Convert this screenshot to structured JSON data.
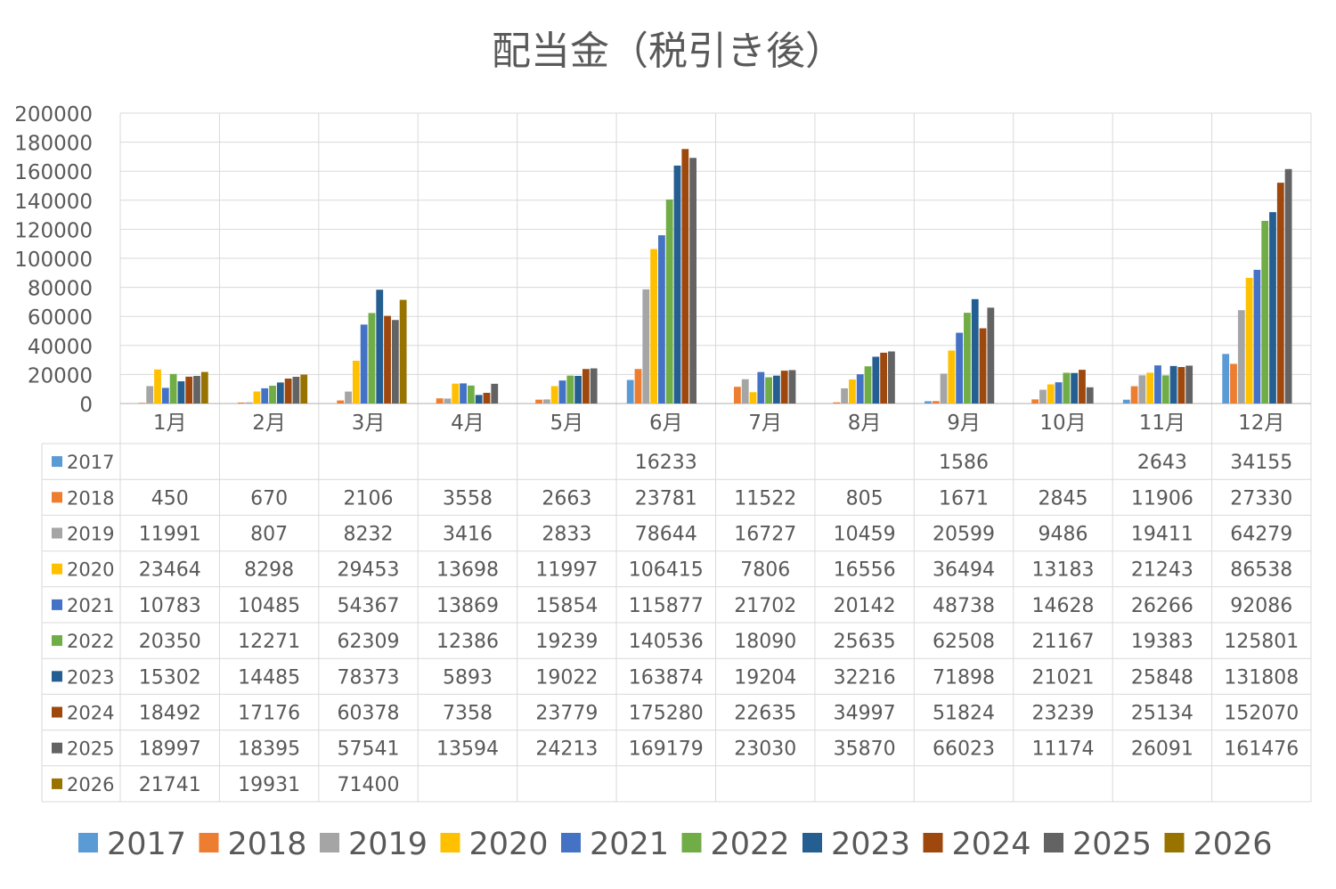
{
  "chart_data": {
    "type": "bar",
    "title": "配当金（税引き後）",
    "categories": [
      "1月",
      "2月",
      "3月",
      "4月",
      "5月",
      "6月",
      "7月",
      "8月",
      "9月",
      "10月",
      "11月",
      "12月"
    ],
    "ylim": [
      0,
      200000
    ],
    "yticks": [
      0,
      20000,
      40000,
      60000,
      80000,
      100000,
      120000,
      140000,
      160000,
      180000,
      200000
    ],
    "grid": true,
    "legend_position": "bottom",
    "data_table": true,
    "series": [
      {
        "name": "2017",
        "color": "#5B9BD5",
        "values": [
          null,
          null,
          null,
          null,
          null,
          16233,
          null,
          null,
          1586,
          null,
          2643,
          34155
        ]
      },
      {
        "name": "2018",
        "color": "#ED7D31",
        "values": [
          450,
          670,
          2106,
          3558,
          2663,
          23781,
          11522,
          805,
          1671,
          2845,
          11906,
          27330
        ]
      },
      {
        "name": "2019",
        "color": "#A5A5A5",
        "values": [
          11991,
          807,
          8232,
          3416,
          2833,
          78644,
          16727,
          10459,
          20599,
          9486,
          19411,
          64279
        ]
      },
      {
        "name": "2020",
        "color": "#FFC000",
        "values": [
          23464,
          8298,
          29453,
          13698,
          11997,
          106415,
          7806,
          16556,
          36494,
          13183,
          21243,
          86538
        ]
      },
      {
        "name": "2021",
        "color": "#4472C4",
        "values": [
          10783,
          10485,
          54367,
          13869,
          15854,
          115877,
          21702,
          20142,
          48738,
          14628,
          26266,
          92086
        ]
      },
      {
        "name": "2022",
        "color": "#70AD47",
        "values": [
          20350,
          12271,
          62309,
          12386,
          19239,
          140536,
          18090,
          25635,
          62508,
          21167,
          19383,
          125801
        ]
      },
      {
        "name": "2023",
        "color": "#255E91",
        "values": [
          15302,
          14485,
          78373,
          5893,
          19022,
          163874,
          19204,
          32216,
          71898,
          21021,
          25848,
          131808
        ]
      },
      {
        "name": "2024",
        "color": "#9E480E",
        "values": [
          18492,
          17176,
          60378,
          7358,
          23779,
          175280,
          22635,
          34997,
          51824,
          23239,
          25134,
          152070
        ]
      },
      {
        "name": "2025",
        "color": "#636363",
        "values": [
          18997,
          18395,
          57541,
          13594,
          24213,
          169179,
          23030,
          35870,
          66023,
          11174,
          26091,
          161476
        ]
      },
      {
        "name": "2026",
        "color": "#997300",
        "values": [
          21741,
          19931,
          71400,
          null,
          null,
          null,
          null,
          null,
          null,
          null,
          null,
          null
        ]
      }
    ]
  }
}
